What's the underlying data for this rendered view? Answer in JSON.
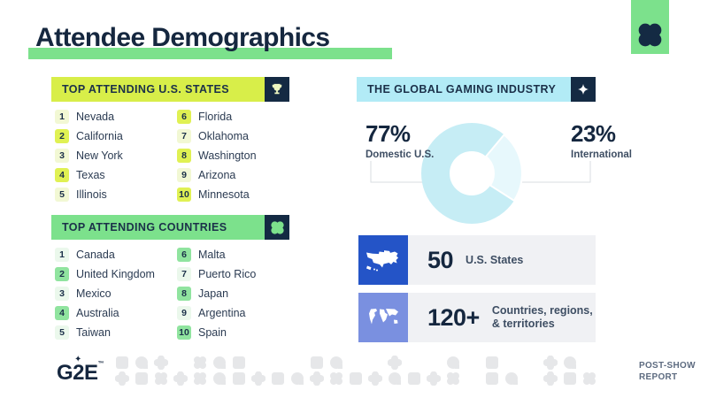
{
  "title": "Attendee Demographics",
  "corner_tab": {
    "icon": "clover-icon"
  },
  "states_section": {
    "header": "TOP ATTENDING U.S. STATES",
    "icon": "trophy-icon",
    "items": [
      {
        "rank": "1",
        "name": "Nevada"
      },
      {
        "rank": "2",
        "name": "California"
      },
      {
        "rank": "3",
        "name": "New York"
      },
      {
        "rank": "4",
        "name": "Texas"
      },
      {
        "rank": "5",
        "name": "Illinois"
      },
      {
        "rank": "6",
        "name": "Florida"
      },
      {
        "rank": "7",
        "name": "Oklahoma"
      },
      {
        "rank": "8",
        "name": "Washington"
      },
      {
        "rank": "9",
        "name": "Arizona"
      },
      {
        "rank": "10",
        "name": "Minnesota"
      }
    ]
  },
  "countries_section": {
    "header": "TOP ATTENDING COUNTRIES",
    "icon": "clover-icon",
    "items": [
      {
        "rank": "1",
        "name": "Canada"
      },
      {
        "rank": "2",
        "name": "United Kingdom"
      },
      {
        "rank": "3",
        "name": "Mexico"
      },
      {
        "rank": "4",
        "name": "Australia"
      },
      {
        "rank": "5",
        "name": "Taiwan"
      },
      {
        "rank": "6",
        "name": "Malta"
      },
      {
        "rank": "7",
        "name": "Puerto Rico"
      },
      {
        "rank": "8",
        "name": "Japan"
      },
      {
        "rank": "9",
        "name": "Argentina"
      },
      {
        "rank": "10",
        "name": "Spain"
      }
    ]
  },
  "industry_section": {
    "header": "THE GLOBAL GAMING INDUSTRY",
    "icon": "sparkle-icon",
    "stats": [
      {
        "icon": "us-map-icon",
        "value": "50",
        "label_lines": [
          "U.S. States",
          ""
        ]
      },
      {
        "icon": "world-map-icon",
        "value": "120+",
        "label_lines": [
          "Countries, regions,",
          "& territories"
        ]
      }
    ]
  },
  "chart_data": {
    "type": "pie",
    "donut": true,
    "title": "THE GLOBAL GAMING INDUSTRY",
    "labels": [
      "Domestic U.S.",
      "International"
    ],
    "values": [
      77,
      23
    ],
    "value_labels": [
      "77%",
      "23%"
    ],
    "colors": [
      "#c6edf5",
      "#e7f8fc"
    ],
    "slice_start_deg": 40,
    "legend_position": "sides"
  },
  "footer": {
    "logo": "G2E",
    "report_label_lines": [
      "POST-SHOW",
      "REPORT"
    ]
  },
  "colors": {
    "navy": "#15273f",
    "green": "#7ce18c",
    "chartreuse": "#d8ee49",
    "cyan_header": "#b2ebf6",
    "card_bg": "#f0f1f4",
    "stat_blue": "#2454c7",
    "stat_periwinkle": "#7a90e0",
    "badge_pale_yellow": "#f2f8d4",
    "badge_yellow": "#e0f153",
    "badge_pale_green": "#ebf8ec",
    "badge_green": "#90e49f",
    "pattern_gray": "#e6e7e9",
    "leader_line": "#d9dde2"
  }
}
